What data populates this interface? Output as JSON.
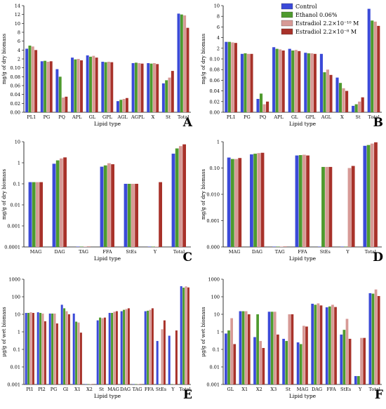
{
  "colors": {
    "control": "#3b4ad8",
    "ethanol": "#4e9a2e",
    "e10": "#d79a96",
    "e8": "#a8322a"
  },
  "legend": [
    "Control",
    "Ethanol 0.06%",
    "Estradiol 2.2×10⁻¹⁰ M",
    "Estradiol 2.2×10⁻⁸ M"
  ],
  "chart_data": [
    {
      "type": "bar",
      "panel": "A",
      "panel_label": "A",
      "xlabel": "Lipid type",
      "ylabel": "mg/g of dry biomass",
      "categories": [
        "PL1",
        "PG",
        "PQ",
        "APL",
        "GL",
        "GPL",
        "AGL",
        "AGPL",
        "X",
        "St",
        "Total"
      ],
      "scale": "log-broken",
      "tick_values": [
        0,
        0.02,
        0.04,
        0.06,
        0.08,
        0.1,
        2,
        4,
        6,
        8,
        10,
        12,
        14
      ],
      "tick_labels": [
        "0.00",
        "0.02",
        "0.04",
        "0.06",
        "0.08",
        "0.10",
        "2",
        "4",
        "6",
        "8",
        "10",
        "12",
        "14"
      ],
      "series": [
        {
          "values": [
            4.3,
            1.5,
            0.097,
            2.3,
            2.8,
            1.4,
            0.025,
            1.1,
            1.1,
            0.065,
            12.2
          ]
        },
        {
          "values": [
            5.0,
            1.6,
            0.08,
            1.9,
            2.5,
            1.3,
            0.028,
            1.2,
            1.0,
            0.072,
            12.0
          ]
        },
        {
          "values": [
            4.8,
            1.4,
            0.033,
            2.0,
            2.7,
            1.4,
            0.03,
            1.1,
            1.1,
            0.078,
            11.8
          ]
        },
        {
          "values": [
            4.0,
            1.5,
            0.035,
            1.7,
            2.3,
            1.3,
            0.032,
            1.0,
            0.9,
            0.093,
            9.0
          ]
        }
      ]
    },
    {
      "type": "bar",
      "panel": "B",
      "panel_label": "B",
      "xlabel": "Lipid type",
      "ylabel": "mg/g of dry biomass",
      "categories": [
        "PL1",
        "PG",
        "PQ",
        "APL",
        "GL",
        "GPL",
        "AGL",
        "X",
        "St",
        "Total"
      ],
      "scale": "log-broken",
      "tick_values": [
        0,
        0.02,
        0.04,
        0.06,
        0.08,
        0.1,
        2,
        4,
        6,
        8,
        10
      ],
      "tick_labels": [
        "0.00",
        "0.02",
        "0.04",
        "0.06",
        "0.08",
        "0.10",
        "2",
        "4",
        "6",
        "8",
        "10"
      ],
      "series": [
        {
          "values": [
            3.2,
            1.0,
            0.025,
            2.2,
            1.9,
            1.2,
            1.0,
            0.065,
            0.012,
            9.4
          ]
        },
        {
          "values": [
            3.2,
            1.1,
            0.035,
            1.9,
            1.6,
            1.1,
            0.075,
            0.055,
            0.015,
            7.2
          ]
        },
        {
          "values": [
            3.1,
            1.0,
            0.015,
            1.8,
            1.7,
            1.1,
            0.08,
            0.045,
            0.02,
            7.0
          ]
        },
        {
          "values": [
            3.0,
            1.0,
            0.02,
            1.6,
            1.5,
            1.0,
            0.07,
            0.04,
            0.028,
            6.2
          ]
        }
      ]
    },
    {
      "type": "bar",
      "panel": "C",
      "panel_label": "C",
      "xlabel": "Lipid type",
      "ylabel": "mg/g of dry biomass",
      "categories": [
        "MAG",
        "DAG",
        "TAG",
        "FFA",
        "StEs",
        "Y",
        "Total"
      ],
      "scale": "log",
      "tick_values": [
        0.0001,
        0.001,
        0.01,
        0.1,
        1,
        10
      ],
      "tick_labels": [
        "0.0001",
        "0.001",
        "0.01",
        "0.1",
        "1",
        "10"
      ],
      "series": [
        {
          "values": [
            0.12,
            0.9,
            0.0001,
            0.65,
            0.1,
            0.0001,
            2.7
          ]
        },
        {
          "values": [
            0.12,
            1.3,
            0.0001,
            0.75,
            0.1,
            0.0001,
            4.8
          ]
        },
        {
          "values": [
            0.12,
            1.6,
            0.0001,
            0.95,
            0.1,
            0.0001,
            6.2
          ]
        },
        {
          "values": [
            0.12,
            1.8,
            0.0001,
            0.85,
            0.1,
            0.12,
            7.5
          ]
        }
      ]
    },
    {
      "type": "bar",
      "panel": "D",
      "panel_label": "D",
      "xlabel": "Lipid type",
      "ylabel": "mg/g of dry biomass",
      "categories": [
        "MAG",
        "DAG",
        "TAG",
        "FFA",
        "StEs",
        "Y",
        "Total"
      ],
      "scale": "log",
      "tick_values": [
        0.0001,
        0.001,
        0.01,
        0.1,
        1
      ],
      "tick_labels": [
        "0.000",
        "0.001",
        "0.010",
        "0.10",
        "1"
      ],
      "series": [
        {
          "values": [
            0.25,
            0.33,
            0.0001,
            0.3,
            0.0001,
            0.0001,
            0.7
          ]
        },
        {
          "values": [
            0.22,
            0.35,
            0.0001,
            0.31,
            0.11,
            0.0001,
            0.75
          ]
        },
        {
          "values": [
            0.22,
            0.37,
            0.0001,
            0.32,
            0.11,
            0.1,
            0.85
          ]
        },
        {
          "values": [
            0.24,
            0.38,
            0.0001,
            0.3,
            0.11,
            0.12,
            0.95
          ]
        }
      ]
    },
    {
      "type": "bar",
      "panel": "E",
      "panel_label": "E",
      "xlabel": "Lipid type",
      "ylabel": "μg/g of wet biomass",
      "categories": [
        "Pl1",
        "Pl2",
        "PG",
        "Gl",
        "X1",
        "X2",
        "St",
        "MAG",
        "DAG",
        "TAG",
        "FFA",
        "StEs",
        "Y",
        "Total"
      ],
      "scale": "log",
      "tick_values": [
        0.001,
        0.01,
        0.1,
        1,
        10,
        100,
        1000
      ],
      "tick_labels": [
        "0.001",
        "0.01",
        "0.1",
        "1",
        "10",
        "100",
        "1000"
      ],
      "series": [
        {
          "values": [
            12,
            13,
            11,
            35,
            11,
            0.001,
            4.5,
            12,
            15,
            0.001,
            15,
            0.3,
            0.6,
            400
          ]
        },
        {
          "values": [
            12,
            12,
            11,
            22,
            3.8,
            0.001,
            6.5,
            12,
            18,
            0.001,
            16,
            0.001,
            0.001,
            330
          ]
        },
        {
          "values": [
            13,
            11,
            11,
            15,
            3.4,
            0.001,
            6.0,
            14,
            20,
            0.001,
            18,
            1.4,
            0.001,
            390
          ]
        },
        {
          "values": [
            12,
            4,
            3,
            10,
            0.9,
            0.001,
            6.5,
            15,
            22,
            0.001,
            22,
            4.5,
            1.2,
            340
          ]
        }
      ]
    },
    {
      "type": "bar",
      "panel": "F",
      "panel_label": "F",
      "xlabel": "Lipid type",
      "ylabel": "μg/g of wet biomass",
      "categories": [
        "GL",
        "X1",
        "X2",
        "X3",
        "St",
        "MAG",
        "DAG",
        "FFA",
        "StEs",
        "Y",
        "Total"
      ],
      "scale": "log",
      "tick_values": [
        0.001,
        0.01,
        0.1,
        1,
        10,
        100,
        1000
      ],
      "tick_labels": [
        "0.001",
        "0.01",
        "0.1",
        "1",
        "10",
        "100",
        "1000"
      ],
      "series": [
        {
          "values": [
            0.8,
            15,
            0.5,
            14,
            0.4,
            0.25,
            40,
            25,
            0.7,
            0.003,
            160
          ]
        },
        {
          "values": [
            1.2,
            15,
            10,
            14,
            0.3,
            0.2,
            35,
            28,
            1.3,
            0.003,
            150
          ]
        },
        {
          "values": [
            6,
            15,
            0.3,
            14,
            10,
            2.2,
            42,
            35,
            5.5,
            0.45,
            260
          ]
        },
        {
          "values": [
            0.2,
            10,
            0.12,
            0.7,
            10,
            2.0,
            32,
            26,
            0.4,
            0.45,
            110
          ]
        }
      ]
    }
  ]
}
